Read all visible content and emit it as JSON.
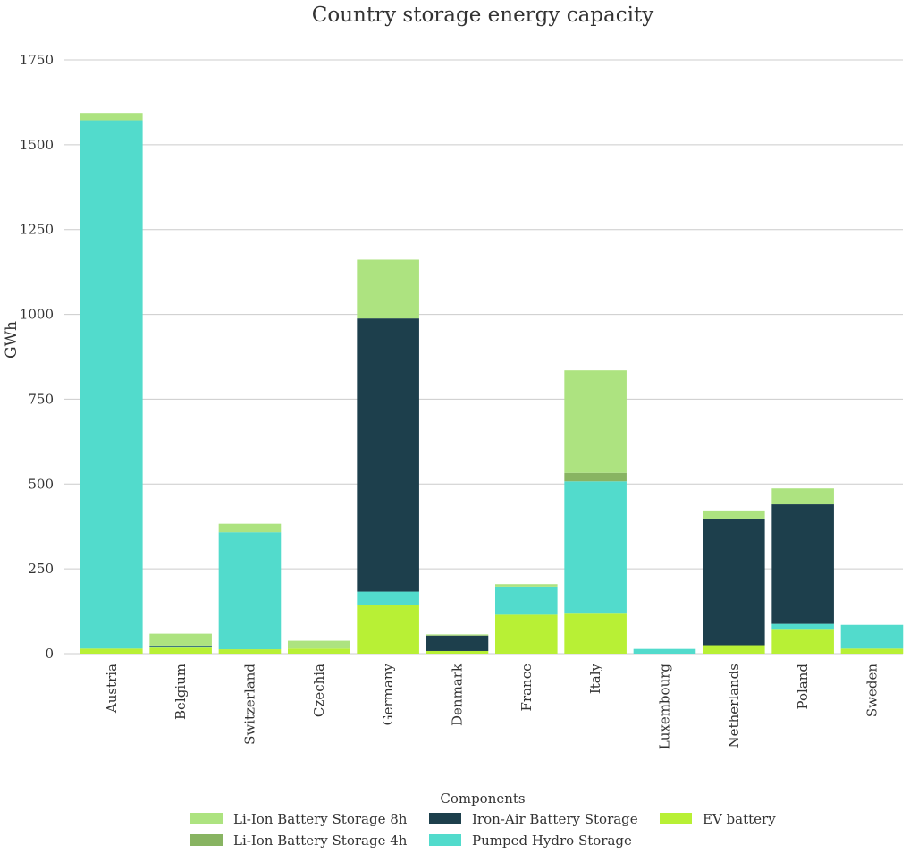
{
  "chart_data": {
    "type": "bar",
    "stacked": true,
    "title": "Country storage energy capacity",
    "xlabel": "",
    "ylabel": "GWh",
    "ylim": [
      0,
      1750
    ],
    "yticks": [
      0,
      250,
      500,
      750,
      1000,
      1250,
      1500,
      1750
    ],
    "grid": true,
    "legend_title": "Components",
    "legend_position": "bottom-center",
    "categories": [
      "Austria",
      "Belgium",
      "Switzerland",
      "Czechia",
      "Germany",
      "Denmark",
      "France",
      "Italy",
      "Luxembourg",
      "Netherlands",
      "Poland",
      "Sweden"
    ],
    "series": [
      {
        "name": "EV battery",
        "color": "#b8f035",
        "values": [
          15,
          18,
          13,
          15,
          143,
          8,
          115,
          118,
          0,
          25,
          73,
          15
        ]
      },
      {
        "name": "Pumped Hydro Storage",
        "color": "#52dbcc",
        "values": [
          1557,
          4,
          345,
          0,
          40,
          0,
          83,
          390,
          14,
          0,
          15,
          70
        ]
      },
      {
        "name": "Iron-Air Battery Storage",
        "color": "#1d3f4c",
        "values": [
          0,
          2,
          0,
          0,
          805,
          45,
          0,
          0,
          0,
          373,
          352,
          0
        ]
      },
      {
        "name": "Li-Ion Battery Storage 4h",
        "color": "#88b462",
        "values": [
          0,
          0,
          0,
          0,
          0,
          2,
          0,
          25,
          0,
          0,
          0,
          0
        ]
      },
      {
        "name": "Li-Ion Battery Storage 8h",
        "color": "#ade380",
        "values": [
          22,
          35,
          25,
          23,
          173,
          2,
          7,
          302,
          0,
          24,
          47,
          0
        ]
      }
    ],
    "legend_order": [
      "Li-Ion Battery Storage 8h",
      "Li-Ion Battery Storage 4h",
      "Iron-Air Battery Storage",
      "Pumped Hydro Storage",
      "EV battery"
    ]
  }
}
